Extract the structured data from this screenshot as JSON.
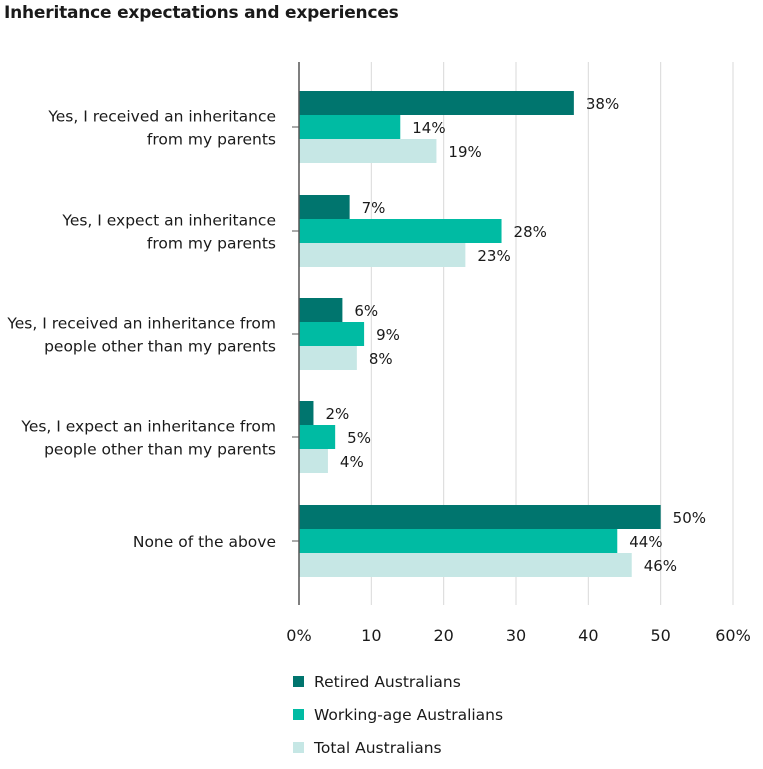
{
  "chart_data": {
    "type": "bar",
    "orientation": "horizontal",
    "title": "Inheritance expectations and experiences",
    "categories": [
      [
        "Yes, I received an inheritance",
        "from my parents"
      ],
      [
        "Yes, I expect an inheritance",
        "from my parents"
      ],
      [
        "Yes, I received an inheritance from",
        "people other than my parents"
      ],
      [
        "Yes, I expect an inheritance from",
        "people other than my parents"
      ],
      [
        "None of the above"
      ]
    ],
    "series": [
      {
        "name": "Retired Australians",
        "color": "#00756E",
        "values": [
          38,
          7,
          6,
          2,
          50
        ],
        "labels": [
          "38%",
          "7%",
          "6%",
          "2%",
          "50%"
        ]
      },
      {
        "name": "Working-age Australians",
        "color": "#00BBA3",
        "values": [
          14,
          28,
          9,
          5,
          44
        ],
        "labels": [
          "14%",
          "28%",
          "9%",
          "5%",
          "44%"
        ]
      },
      {
        "name": "Total Australians",
        "color": "#C6E7E5",
        "values": [
          19,
          23,
          8,
          4,
          46
        ],
        "labels": [
          "19%",
          "23%",
          "8%",
          "4%",
          "46%"
        ]
      }
    ],
    "xlim": [
      0,
      60
    ],
    "xticks": [
      0,
      10,
      20,
      30,
      40,
      50,
      60
    ],
    "xtick_labels": [
      "0%",
      "10",
      "20",
      "30",
      "40",
      "50",
      "60%"
    ],
    "grid": true,
    "legend_position": "bottom"
  }
}
